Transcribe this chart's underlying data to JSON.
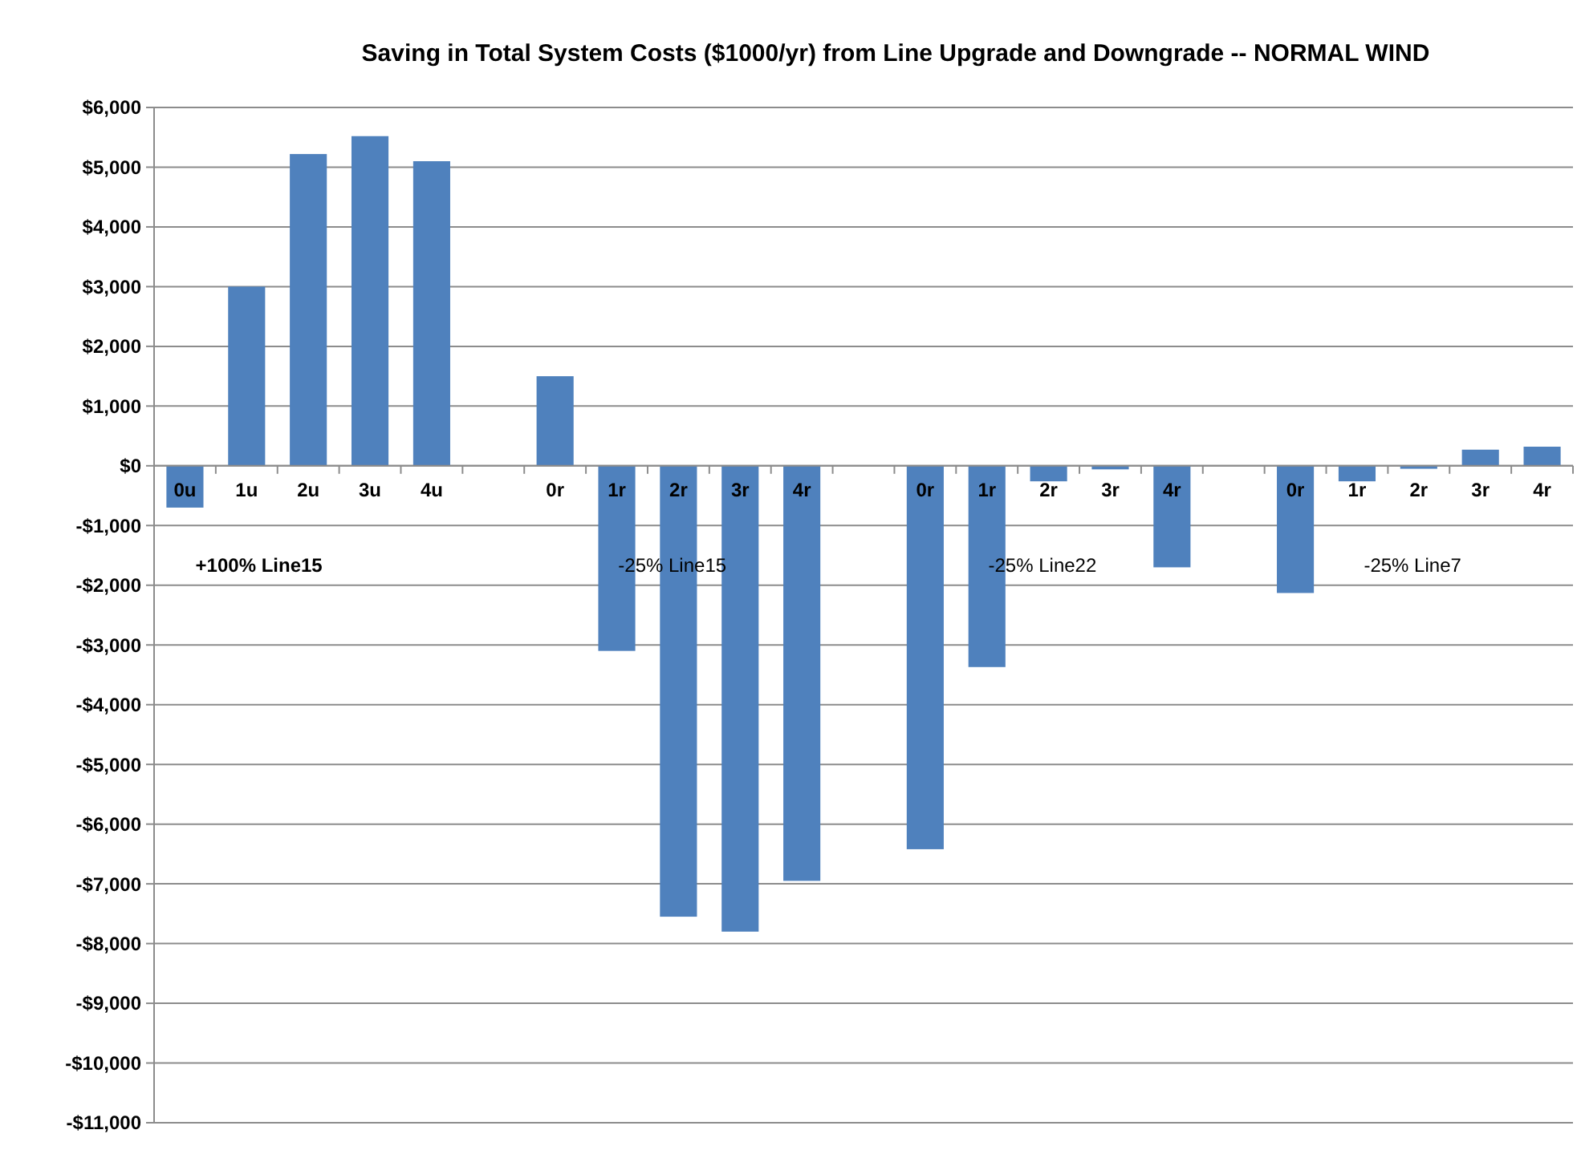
{
  "chart_data": {
    "type": "bar",
    "title": "Saving in Total System Costs ($1000/yr) from Line Upgrade and Downgrade -- NORMAL WIND",
    "categories": [
      "0u",
      "1u",
      "2u",
      "3u",
      "4u",
      null,
      "0r",
      "1r",
      "2r",
      "3r",
      "4r",
      null,
      "0r",
      "1r",
      "2r",
      "3r",
      "4r",
      null,
      "0r",
      "1r",
      "2r",
      "3r",
      "4r"
    ],
    "values": [
      -700,
      3000,
      5220,
      5520,
      5100,
      null,
      1500,
      -3100,
      -7550,
      -7800,
      -6950,
      null,
      -6420,
      -3370,
      -260,
      -60,
      -1700,
      null,
      -2130,
      -260,
      -50,
      270,
      320
    ],
    "color": "#4f81bd",
    "ylim": [
      -11000,
      6000
    ],
    "yticks": [
      {
        "value": 6000,
        "label": "$6,000"
      },
      {
        "value": 5000,
        "label": "$5,000"
      },
      {
        "value": 4000,
        "label": "$4,000"
      },
      {
        "value": 3000,
        "label": "$3,000"
      },
      {
        "value": 2000,
        "label": "$2,000"
      },
      {
        "value": 1000,
        "label": "$1,000"
      },
      {
        "value": 0,
        "label": "$0"
      },
      {
        "value": -1000,
        "label": "-$1,000"
      },
      {
        "value": -2000,
        "label": "-$2,000"
      },
      {
        "value": -3000,
        "label": "-$3,000"
      },
      {
        "value": -4000,
        "label": "-$4,000"
      },
      {
        "value": -5000,
        "label": "-$5,000"
      },
      {
        "value": -6000,
        "label": "-$6,000"
      },
      {
        "value": -7000,
        "label": "-$7,000"
      },
      {
        "value": -8000,
        "label": "-$8,000"
      },
      {
        "value": -9000,
        "label": "-$9,000"
      },
      {
        "value": -10000,
        "label": "-$10,000"
      },
      {
        "value": -11000,
        "label": "-$11,000"
      }
    ],
    "grid": "y",
    "annotations": [
      "+100% Line15",
      "-25% Line15",
      "-25% Line22",
      "-25% Line7"
    ]
  }
}
